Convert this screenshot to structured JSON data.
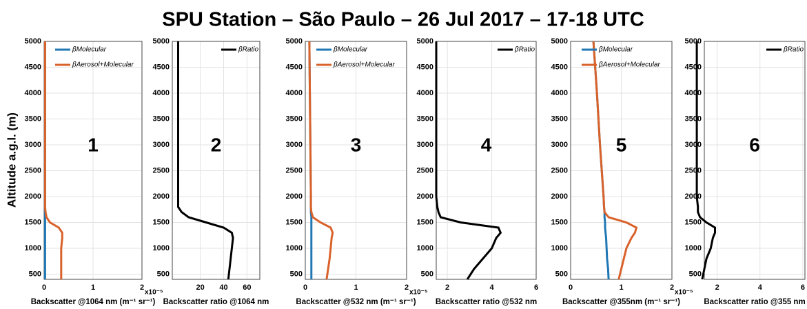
{
  "title": "SPU Station – São Paulo – 26 Jul 2017 – 17-18 UTC",
  "ylabel": "Altitude a.g.l. (m)",
  "chart_data": [
    {
      "type": "line",
      "annotation": "1",
      "xlabel": "Backscatter @1064 nm (m⁻¹ sr⁻¹)",
      "multiplier": "x10⁻⁵",
      "legend": "upper left",
      "grid": true,
      "y": [
        400,
        600,
        800,
        1000,
        1200,
        1300,
        1400,
        1500,
        1600,
        1700,
        1800,
        2000,
        3000,
        4000,
        5000
      ],
      "series": [
        {
          "name": "βMolecular",
          "color": "#1f77b4",
          "values": [
            0.02,
            0.02,
            0.02,
            0.02,
            0.02,
            0.02,
            0.02,
            0.02,
            0.02,
            0.02,
            0.02,
            0.02,
            0.02,
            0.02,
            0.02
          ]
        },
        {
          "name": "βAerosol+Molecular",
          "color": "#d9622b",
          "values": [
            0.35,
            0.35,
            0.35,
            0.35,
            0.37,
            0.37,
            0.3,
            0.12,
            0.05,
            0.03,
            0.02,
            0.02,
            0.02,
            0.02,
            0.02
          ]
        }
      ],
      "xlim": [
        0,
        2
      ],
      "xticks": [
        0,
        1,
        2
      ],
      "ylim": [
        400,
        5000
      ],
      "yticks": [
        500,
        1000,
        1500,
        2000,
        2500,
        3000,
        3500,
        4000,
        4500,
        5000
      ]
    },
    {
      "type": "line",
      "annotation": "2",
      "xlabel": "Backscatter ratio @1064 nm",
      "legend": "upper right",
      "grid": true,
      "y": [
        400,
        600,
        800,
        1000,
        1200,
        1300,
        1400,
        1500,
        1600,
        1700,
        1800,
        2000,
        3000,
        4000,
        5000
      ],
      "series": [
        {
          "name": "βRatio",
          "color": "#000000",
          "values": [
            44,
            45,
            46,
            47,
            48,
            47,
            40,
            25,
            10,
            4,
            1,
            1,
            1,
            1,
            1
          ]
        }
      ],
      "xlim": [
        -4,
        71
      ],
      "xticks": [
        20,
        40,
        60
      ],
      "ylim": [
        400,
        5000
      ],
      "yticks": [
        500,
        1000,
        1500,
        2000,
        2500,
        3000,
        3500,
        4000,
        4500,
        5000
      ]
    },
    {
      "type": "line",
      "annotation": "3",
      "xlabel": "Backscatter @532 nm (m⁻¹ sr⁻¹)",
      "multiplier": "x10⁻⁵",
      "legend": "upper left",
      "grid": true,
      "y": [
        400,
        600,
        800,
        1000,
        1200,
        1300,
        1400,
        1500,
        1600,
        1700,
        1800,
        2000,
        3000,
        4000,
        5000
      ],
      "series": [
        {
          "name": "βMolecular",
          "color": "#1f77b4",
          "values": [
            0.12,
            0.12,
            0.12,
            0.12,
            0.12,
            0.12,
            0.12,
            0.12,
            0.12,
            0.11,
            0.11,
            0.11,
            0.1,
            0.09,
            0.08
          ]
        },
        {
          "name": "βAerosol+Molecular",
          "color": "#d9622b",
          "values": [
            0.42,
            0.45,
            0.48,
            0.5,
            0.52,
            0.54,
            0.5,
            0.3,
            0.15,
            0.12,
            0.11,
            0.11,
            0.1,
            0.09,
            0.08
          ]
        }
      ],
      "xlim": [
        0,
        2
      ],
      "xticks": [
        0,
        1,
        2
      ],
      "ylim": [
        400,
        5000
      ],
      "yticks": [
        500,
        1000,
        1500,
        2000,
        2500,
        3000,
        3500,
        4000,
        4500,
        5000
      ]
    },
    {
      "type": "line",
      "annotation": "4",
      "xlabel": "Backscatter ratio @532 nm",
      "legend": "upper right",
      "grid": true,
      "y": [
        400,
        600,
        800,
        1000,
        1200,
        1300,
        1400,
        1500,
        1600,
        1700,
        1800,
        2000,
        3000,
        4000,
        5000
      ],
      "series": [
        {
          "name": "βRatio",
          "color": "#000000",
          "values": [
            2.9,
            3.2,
            3.6,
            4.0,
            4.2,
            4.4,
            4.3,
            2.6,
            1.7,
            1.6,
            1.55,
            1.5,
            1.5,
            1.5,
            1.5
          ]
        }
      ],
      "xlim": [
        1.5,
        6
      ],
      "xticks": [
        2,
        4,
        6
      ],
      "ylim": [
        400,
        5000
      ],
      "yticks": [
        500,
        1000,
        1500,
        2000,
        2500,
        3000,
        3500,
        4000,
        4500,
        5000
      ]
    },
    {
      "type": "line",
      "annotation": "5",
      "xlabel": "Backscatter @355nm (m⁻¹ sr⁻¹)",
      "multiplier": "x10⁻⁵",
      "legend": "upper left",
      "grid": true,
      "y": [
        400,
        600,
        800,
        1000,
        1200,
        1300,
        1400,
        1500,
        1600,
        1700,
        1800,
        2000,
        3000,
        4000,
        5000
      ],
      "series": [
        {
          "name": "βMolecular",
          "color": "#1f77b4",
          "values": [
            0.75,
            0.74,
            0.72,
            0.71,
            0.7,
            0.69,
            0.68,
            0.68,
            0.67,
            0.67,
            0.66,
            0.65,
            0.58,
            0.52,
            0.45
          ]
        },
        {
          "name": "βAerosol+Molecular",
          "color": "#d9622b",
          "values": [
            0.95,
            1.0,
            1.05,
            1.1,
            1.2,
            1.27,
            1.3,
            1.1,
            0.75,
            0.67,
            0.66,
            0.65,
            0.58,
            0.52,
            0.45
          ]
        }
      ],
      "xlim": [
        0,
        2
      ],
      "xticks": [
        0,
        1,
        2
      ],
      "ylim": [
        400,
        5000
      ],
      "yticks": [
        500,
        1000,
        1500,
        2000,
        2500,
        3000,
        3500,
        4000,
        4500,
        5000
      ]
    },
    {
      "type": "line",
      "annotation": "6",
      "xlabel": "Backscatter ratio @355 nm",
      "legend": "upper right",
      "grid": true,
      "y": [
        400,
        600,
        800,
        1000,
        1200,
        1300,
        1400,
        1500,
        1600,
        1700,
        1800,
        2000,
        3000,
        4000,
        5000
      ],
      "series": [
        {
          "name": "βRatio",
          "color": "#000000",
          "values": [
            1.3,
            1.4,
            1.5,
            1.7,
            1.8,
            1.9,
            1.9,
            1.5,
            1.2,
            1.1,
            1.1,
            1.05,
            1.05,
            1.05,
            1.05
          ]
        }
      ],
      "xlim": [
        1.4,
        6.1
      ],
      "xticks": [
        2,
        4,
        6
      ],
      "ylim": [
        400,
        5000
      ],
      "yticks": [
        500,
        1000,
        1500,
        2000,
        2500,
        3000,
        3500,
        4000,
        4500,
        5000
      ]
    }
  ]
}
